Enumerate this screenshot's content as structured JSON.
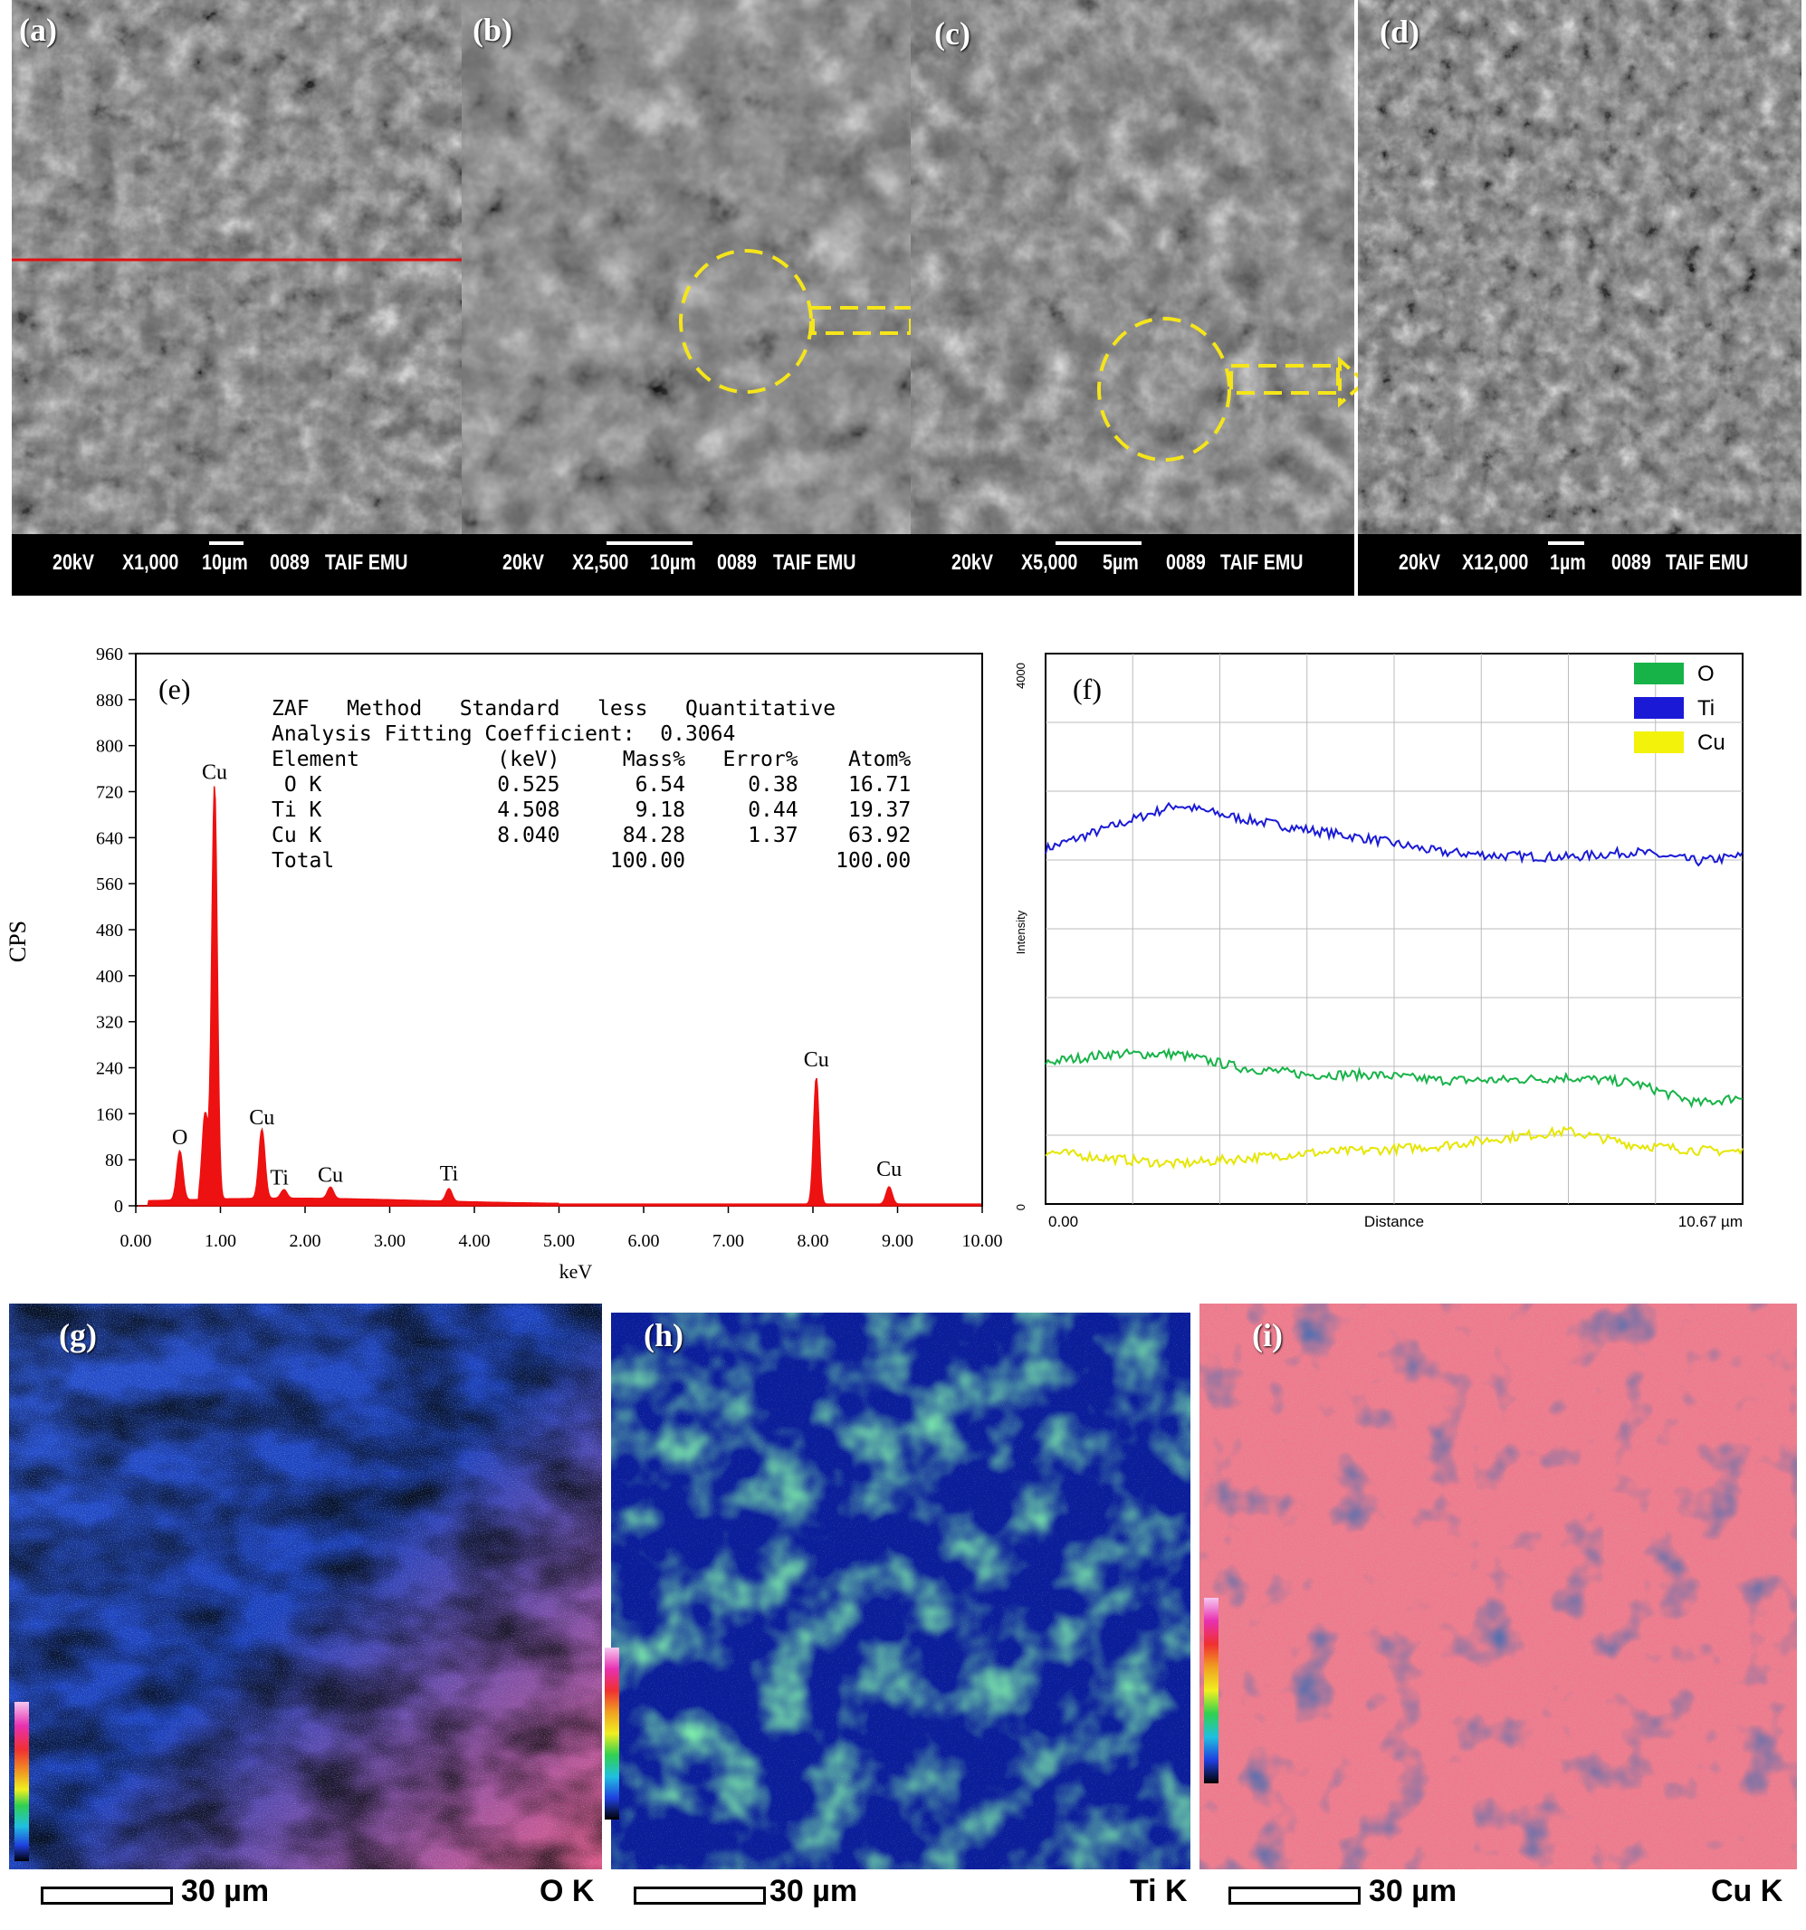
{
  "sem_panels": [
    {
      "label": "(a)",
      "voltage": "20kV",
      "mag": "X1,000",
      "scale": "10µm",
      "id": "0089",
      "lab": "TAIF EMU"
    },
    {
      "label": "(b)",
      "voltage": "20kV",
      "mag": "X2,500",
      "scale": "10µm",
      "id": "0089",
      "lab": "TAIF EMU"
    },
    {
      "label": "(c)",
      "voltage": "20kV",
      "mag": "X5,000",
      "scale": "5µm",
      "id": "0089",
      "lab": "TAIF EMU"
    },
    {
      "label": "(d)",
      "voltage": "20kV",
      "mag": "X12,000",
      "scale": "1µm",
      "id": "0089",
      "lab": "TAIF EMU"
    }
  ],
  "eds": {
    "label": "(e)",
    "ylabel": "CPS",
    "xlabel": "keV",
    "table_lines": [
      "ZAF   Method   Standard   less   Quantitative",
      "Analysis Fitting Coefficient:  0.3064",
      "Element           (keV)     Mass%   Error%    Atom%",
      " O K              0.525      6.54     0.38    16.71",
      "Ti K              4.508      9.18     0.44    19.37",
      "Cu K              8.040     84.28     1.37    63.92",
      "Total                      100.00            100.00"
    ]
  },
  "line_scan": {
    "label": "(f)",
    "ylabel": "Intensity",
    "y_top": "4000",
    "y_bottom": "0",
    "x_start": "0.00",
    "xlabel": "Distance",
    "x_end": "10.67 µm",
    "legend": [
      {
        "name": "O",
        "color": "#17b348"
      },
      {
        "name": "Ti",
        "color": "#1a1ad6"
      },
      {
        "name": "Cu",
        "color": "#f2f20a"
      }
    ]
  },
  "maps": [
    {
      "label": "(g)",
      "scale": "30 µm",
      "element": "O K"
    },
    {
      "label": "(h)",
      "scale": "30 µm",
      "element": "Ti K"
    },
    {
      "label": "(i)",
      "scale": "30 µm",
      "element": "Cu K"
    }
  ],
  "chart_data": [
    {
      "type": "line",
      "title": "",
      "xlabel": "keV",
      "ylabel": "CPS",
      "xlim": [
        0,
        10
      ],
      "ylim": [
        0,
        960
      ],
      "x_ticks": [
        "0.00",
        "1.00",
        "2.00",
        "3.00",
        "4.00",
        "5.00",
        "6.00",
        "7.00",
        "8.00",
        "9.00",
        "10.00"
      ],
      "y_ticks": [
        "0",
        "80",
        "160",
        "240",
        "320",
        "400",
        "480",
        "560",
        "640",
        "720",
        "800",
        "880",
        "960"
      ],
      "peaks": [
        {
          "label": "O",
          "x": 0.52,
          "y": 85
        },
        {
          "label": "Cu",
          "x": 0.93,
          "y": 720
        },
        {
          "label": "Cu",
          "x": 1.49,
          "y": 120
        },
        {
          "label": "Ti",
          "x": 1.75,
          "y": 15
        },
        {
          "label": "Cu",
          "x": 2.3,
          "y": 20
        },
        {
          "label": "Ti",
          "x": 3.7,
          "y": 22
        },
        {
          "label": "Cu",
          "x": 8.04,
          "y": 220
        },
        {
          "label": "Cu",
          "x": 8.9,
          "y": 30
        }
      ]
    },
    {
      "type": "line",
      "title": "",
      "xlabel": "Distance",
      "ylabel": "Intensity",
      "xlim": [
        0,
        10.67
      ],
      "ylim": [
        0,
        4000
      ],
      "series": [
        {
          "name": "Ti",
          "x": [
            0,
            1,
            2,
            3,
            4,
            5,
            6,
            7,
            8,
            9,
            10,
            10.67
          ],
          "values": [
            2580,
            2740,
            2900,
            2800,
            2720,
            2650,
            2560,
            2530,
            2520,
            2560,
            2490,
            2530
          ]
        },
        {
          "name": "O",
          "x": [
            0,
            1,
            2,
            3,
            4,
            5,
            6,
            7,
            8,
            9,
            10,
            10.67
          ],
          "values": [
            1030,
            1090,
            1090,
            990,
            940,
            940,
            900,
            900,
            920,
            880,
            730,
            780
          ]
        },
        {
          "name": "Cu",
          "x": [
            0,
            1,
            2,
            3,
            4,
            5,
            6,
            7,
            8,
            9,
            10,
            10.67
          ],
          "values": [
            380,
            330,
            290,
            330,
            370,
            390,
            420,
            480,
            530,
            430,
            390,
            380
          ]
        }
      ]
    }
  ]
}
